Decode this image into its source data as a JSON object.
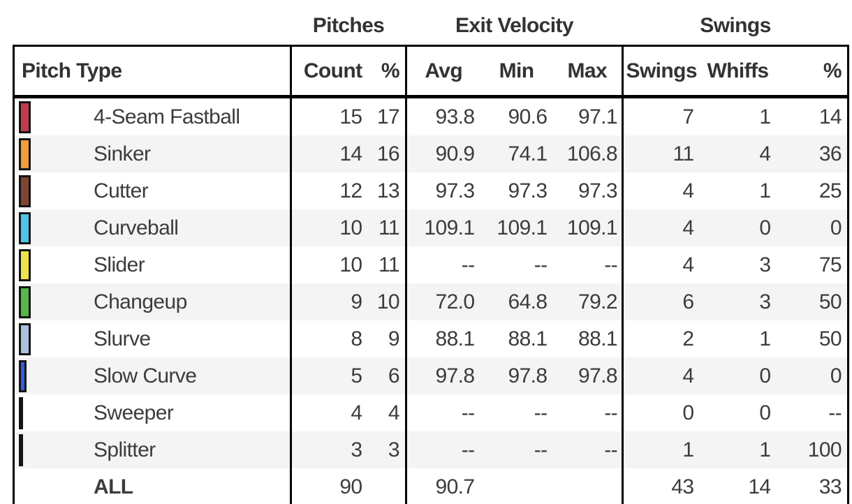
{
  "group_headers": {
    "pitches": "Pitches",
    "exit_velocity": "Exit Velocity",
    "swings": "Swings"
  },
  "column_headers": {
    "pitch_type": "Pitch Type",
    "count": "Count",
    "count_pct": "%",
    "avg": "Avg",
    "min": "Min",
    "max": "Max",
    "swings": "Swings",
    "whiffs": "Whiffs",
    "swings_pct": "%"
  },
  "empty_value": "--",
  "colors": {
    "border": "#000000",
    "text": "#3c3c3c",
    "row_alt_bg": "#f4f4f4"
  },
  "rows": [
    {
      "pitch": "4-Seam Fastball",
      "swatch": {
        "color": "#c23b4e",
        "width": 17
      },
      "count": "15",
      "count_pct": "17",
      "avg": "93.8",
      "min": "90.6",
      "max": "97.1",
      "swings": "7",
      "whiffs": "1",
      "swings_pct": "14"
    },
    {
      "pitch": "Sinker",
      "swatch": {
        "color": "#f09d3c",
        "width": 17
      },
      "count": "14",
      "count_pct": "16",
      "avg": "90.9",
      "min": "74.1",
      "max": "106.8",
      "swings": "11",
      "whiffs": "4",
      "swings_pct": "36"
    },
    {
      "pitch": "Cutter",
      "swatch": {
        "color": "#7f4533",
        "width": 17
      },
      "count": "12",
      "count_pct": "13",
      "avg": "97.3",
      "min": "97.3",
      "max": "97.3",
      "swings": "4",
      "whiffs": "1",
      "swings_pct": "25"
    },
    {
      "pitch": "Curveball",
      "swatch": {
        "color": "#4fc4e7",
        "width": 17
      },
      "count": "10",
      "count_pct": "11",
      "avg": "109.1",
      "min": "109.1",
      "max": "109.1",
      "swings": "4",
      "whiffs": "0",
      "swings_pct": "0"
    },
    {
      "pitch": "Slider",
      "swatch": {
        "color": "#eee34d",
        "width": 17
      },
      "count": "10",
      "count_pct": "11",
      "avg": "--",
      "min": "--",
      "max": "--",
      "swings": "4",
      "whiffs": "3",
      "swings_pct": "75"
    },
    {
      "pitch": "Changeup",
      "swatch": {
        "color": "#57b64b",
        "width": 17
      },
      "count": "9",
      "count_pct": "10",
      "avg": "72.0",
      "min": "64.8",
      "max": "79.2",
      "swings": "6",
      "whiffs": "3",
      "swings_pct": "50"
    },
    {
      "pitch": "Slurve",
      "swatch": {
        "color": "#a9c0dc",
        "width": 17
      },
      "count": "8",
      "count_pct": "9",
      "avg": "88.1",
      "min": "88.1",
      "max": "88.1",
      "swings": "2",
      "whiffs": "1",
      "swings_pct": "50"
    },
    {
      "pitch": "Slow Curve",
      "swatch": {
        "color": "#2e61d9",
        "width": 11
      },
      "count": "5",
      "count_pct": "6",
      "avg": "97.8",
      "min": "97.8",
      "max": "97.8",
      "swings": "4",
      "whiffs": "0",
      "swings_pct": "0"
    },
    {
      "pitch": "Sweeper",
      "swatch": {
        "color": "#000000",
        "width": 6
      },
      "count": "4",
      "count_pct": "4",
      "avg": "--",
      "min": "--",
      "max": "--",
      "swings": "0",
      "whiffs": "0",
      "swings_pct": "--"
    },
    {
      "pitch": "Splitter",
      "swatch": {
        "color": "#000000",
        "width": 6
      },
      "count": "3",
      "count_pct": "3",
      "avg": "--",
      "min": "--",
      "max": "--",
      "swings": "1",
      "whiffs": "1",
      "swings_pct": "100"
    }
  ],
  "totals_row": {
    "pitch": "ALL",
    "count": "90",
    "count_pct": "",
    "avg": "90.7",
    "min": "",
    "max": "",
    "swings": "43",
    "whiffs": "14",
    "swings_pct": "33"
  }
}
